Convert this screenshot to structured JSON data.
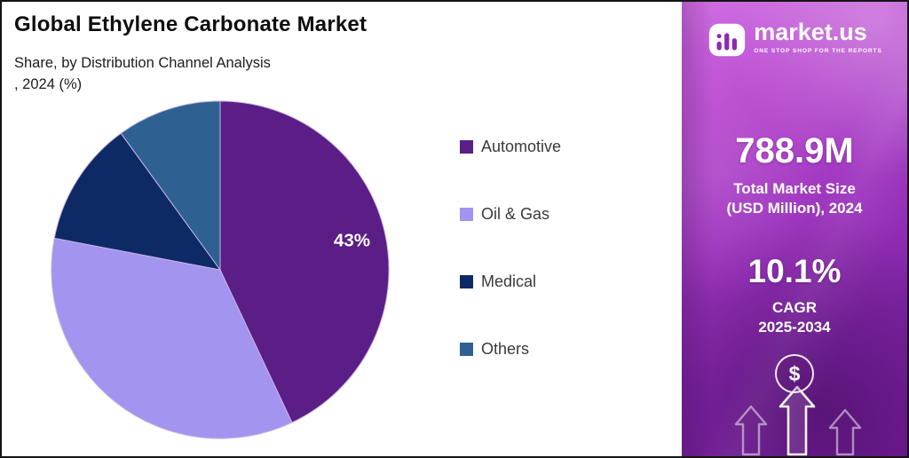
{
  "header": {
    "title": "Global Ethylene Carbonate Market",
    "subtitle_line1": "Share, by Distribution Channel Analysis",
    "subtitle_line2": ", 2024 (%)"
  },
  "chart_data": {
    "type": "pie",
    "title": "Global Ethylene Carbonate Market - Share, by Distribution Channel Analysis, 2024 (%)",
    "labels": [
      "Automotive",
      "Oil & Gas",
      "Medical",
      "Others"
    ],
    "values": [
      43,
      35,
      12,
      10
    ],
    "colors": [
      "#5b1d86",
      "#a294ef",
      "#0d2a66",
      "#2e6191"
    ],
    "data_labels": [
      "43%",
      "",
      "",
      ""
    ],
    "start_angle_deg": 0,
    "legend_position": "right"
  },
  "sidebar": {
    "brand": "market.us",
    "tagline": "ONE STOP SHOP FOR THE REPORTS",
    "stat1_value": "788.9M",
    "stat1_label_line1": "Total Market Size",
    "stat1_label_line2": "(USD Million), 2024",
    "stat2_value": "10.1%",
    "stat2_label_line1": "CAGR",
    "stat2_label_line2": "2025-2034",
    "dollar_symbol": "$"
  }
}
